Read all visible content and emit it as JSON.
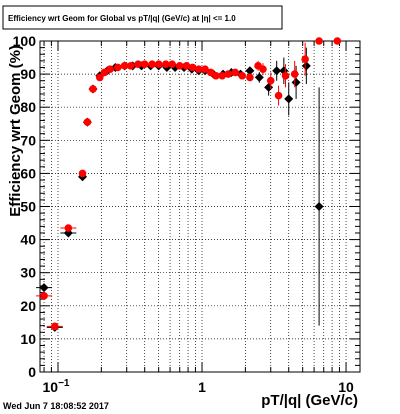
{
  "chart_data": {
    "type": "scatter",
    "title": "Efficiency wrt Geom for Global vs pT/|q| (GeV/c) at |η| <= 1.0",
    "xlabel": "pT/|q| (GeV/c)",
    "ylabel": "Efficiency wrt Geom (%)",
    "xscale": "log",
    "xlim": [
      0.075,
      12.5
    ],
    "ylim": [
      0,
      100
    ],
    "grid": true,
    "legend": "none",
    "y_ticks": [
      "0",
      "10",
      "20",
      "30",
      "40",
      "50",
      "60",
      "70",
      "80",
      "90",
      "100"
    ],
    "x_ticks": [
      {
        "value": 0.1,
        "base": "10",
        "exp": "−1"
      },
      {
        "value": 1,
        "label": "1"
      },
      {
        "value": 10,
        "label": "10"
      }
    ],
    "series": [
      {
        "color": "#000000",
        "marker": "diamond",
        "points": [
          {
            "x": 0.08,
            "y": 25.5,
            "err": 1.0
          },
          {
            "x": 0.095,
            "y": 13.5,
            "err": 0.8
          },
          {
            "x": 0.118,
            "y": 42.0,
            "err": 1.0
          },
          {
            "x": 0.148,
            "y": 59.0,
            "err": 1.0
          },
          {
            "x": 0.16,
            "y": 75.5,
            "err": 0.8
          },
          {
            "x": 0.175,
            "y": 85.5,
            "err": 0.8
          },
          {
            "x": 0.195,
            "y": 89.5,
            "err": 0.8
          },
          {
            "x": 0.22,
            "y": 91.0,
            "err": 0.6
          },
          {
            "x": 0.25,
            "y": 92.0,
            "err": 0.5
          },
          {
            "x": 0.29,
            "y": 92.5,
            "err": 0.5
          },
          {
            "x": 0.33,
            "y": 92.5,
            "err": 0.5
          },
          {
            "x": 0.38,
            "y": 92.5,
            "err": 0.5
          },
          {
            "x": 0.44,
            "y": 92.5,
            "err": 0.5
          },
          {
            "x": 0.5,
            "y": 92.5,
            "err": 0.5
          },
          {
            "x": 0.57,
            "y": 92.0,
            "err": 0.5
          },
          {
            "x": 0.65,
            "y": 92.0,
            "err": 0.5
          },
          {
            "x": 0.75,
            "y": 92.0,
            "err": 0.5
          },
          {
            "x": 0.85,
            "y": 91.5,
            "err": 0.5
          },
          {
            "x": 0.95,
            "y": 91.0,
            "err": 0.6
          },
          {
            "x": 1.05,
            "y": 91.0,
            "err": 0.6
          },
          {
            "x": 1.2,
            "y": 90.0,
            "err": 0.8
          },
          {
            "x": 1.4,
            "y": 90.0,
            "err": 0.8
          },
          {
            "x": 1.6,
            "y": 90.5,
            "err": 0.9
          },
          {
            "x": 1.85,
            "y": 90.0,
            "err": 1.0
          },
          {
            "x": 2.15,
            "y": 91.0,
            "err": 1.2
          },
          {
            "x": 2.5,
            "y": 89.0,
            "err": 1.6
          },
          {
            "x": 2.9,
            "y": 86.0,
            "err": 2.5
          },
          {
            "x": 3.3,
            "y": 91.0,
            "err": 3.0
          },
          {
            "x": 3.7,
            "y": 91.0,
            "err": 4.0
          },
          {
            "x": 4.0,
            "y": 82.5,
            "err": 5.0
          },
          {
            "x": 4.5,
            "y": 87.5,
            "err": 5.0
          },
          {
            "x": 5.3,
            "y": 92.5,
            "err": 5.5
          },
          {
            "x": 6.5,
            "y": 50.0,
            "err": 36.0
          }
        ]
      },
      {
        "color": "#ff0000",
        "marker": "circle",
        "points": [
          {
            "x": 0.08,
            "y": 23.0,
            "err": 1.0
          },
          {
            "x": 0.095,
            "y": 13.8,
            "err": 0.8
          },
          {
            "x": 0.118,
            "y": 43.5,
            "err": 1.0
          },
          {
            "x": 0.148,
            "y": 60.0,
            "err": 1.0
          },
          {
            "x": 0.16,
            "y": 75.5,
            "err": 0.8
          },
          {
            "x": 0.175,
            "y": 85.5,
            "err": 0.8
          },
          {
            "x": 0.195,
            "y": 89.0,
            "err": 0.8
          },
          {
            "x": 0.21,
            "y": 90.5,
            "err": 0.6
          },
          {
            "x": 0.23,
            "y": 91.5,
            "err": 0.6
          },
          {
            "x": 0.26,
            "y": 92.0,
            "err": 0.5
          },
          {
            "x": 0.29,
            "y": 92.5,
            "err": 0.5
          },
          {
            "x": 0.32,
            "y": 92.5,
            "err": 0.5
          },
          {
            "x": 0.36,
            "y": 93.0,
            "err": 0.5
          },
          {
            "x": 0.4,
            "y": 93.0,
            "err": 0.5
          },
          {
            "x": 0.45,
            "y": 93.0,
            "err": 0.5
          },
          {
            "x": 0.5,
            "y": 93.0,
            "err": 0.5
          },
          {
            "x": 0.56,
            "y": 93.0,
            "err": 0.5
          },
          {
            "x": 0.62,
            "y": 93.0,
            "err": 0.5
          },
          {
            "x": 0.7,
            "y": 92.5,
            "err": 0.5
          },
          {
            "x": 0.78,
            "y": 92.5,
            "err": 0.5
          },
          {
            "x": 0.86,
            "y": 92.0,
            "err": 0.6
          },
          {
            "x": 0.95,
            "y": 91.5,
            "err": 0.6
          },
          {
            "x": 1.05,
            "y": 91.5,
            "err": 0.6
          },
          {
            "x": 1.15,
            "y": 90.5,
            "err": 0.7
          },
          {
            "x": 1.25,
            "y": 89.5,
            "err": 0.8
          },
          {
            "x": 1.38,
            "y": 89.5,
            "err": 0.8
          },
          {
            "x": 1.52,
            "y": 90.0,
            "err": 0.8
          },
          {
            "x": 1.7,
            "y": 90.5,
            "err": 0.9
          },
          {
            "x": 1.9,
            "y": 89.5,
            "err": 1.0
          },
          {
            "x": 2.15,
            "y": 89.0,
            "err": 1.2
          },
          {
            "x": 2.45,
            "y": 92.5,
            "err": 1.5
          },
          {
            "x": 2.65,
            "y": 91.5,
            "err": 1.8
          },
          {
            "x": 3.0,
            "y": 88.0,
            "err": 2.5
          },
          {
            "x": 3.4,
            "y": 83.5,
            "err": 3.0
          },
          {
            "x": 3.8,
            "y": 89.5,
            "err": 3.5
          },
          {
            "x": 4.4,
            "y": 90.0,
            "err": 4.0
          },
          {
            "x": 5.2,
            "y": 94.5,
            "err": 5.0
          },
          {
            "x": 6.5,
            "y": 100.0,
            "err": 0
          },
          {
            "x": 8.7,
            "y": 100.0,
            "err": 0
          }
        ]
      }
    ]
  },
  "footer": {
    "timestamp": "Wed Jun  7 18:08:52 2017"
  }
}
